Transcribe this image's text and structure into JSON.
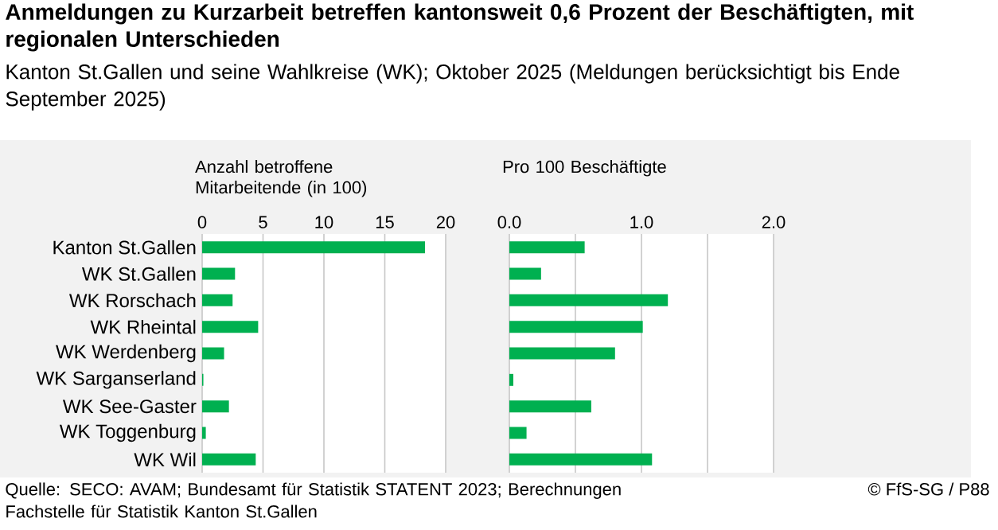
{
  "chart_data": [
    {
      "type": "bar",
      "orientation": "horizontal",
      "title": "Anmeldungen zu Kurzarbeit betreffen kantonsweit 0,6 Prozent der Beschäftigten, mit regionalen Unterschieden",
      "subtitle": "Kanton St.Gallen und seine Wahlkreise (WK); Oktober 2025 (Meldungen berücksichtigt bis Ende September 2025)",
      "xlabel": "Anzahl betroffene Mitarbeitende (in 100)",
      "categories": [
        "Kanton St.Gallen",
        "WK St.Gallen",
        "WK Rorschach",
        "WK Rheintal",
        "WK Werdenberg",
        "WK Sarganserland",
        "WK See-Gaster",
        "WK Toggenburg",
        "WK Wil"
      ],
      "values": [
        18.3,
        2.7,
        2.5,
        4.6,
        1.8,
        0.1,
        2.2,
        0.3,
        4.4
      ],
      "color": "#00b050",
      "xlim": [
        0,
        20
      ],
      "xticks": [
        0,
        5,
        10,
        15,
        20
      ],
      "grid": "x",
      "annotations": [
        "Quelle: SECO: AVAM; Bundesamt für Statistik STATENT 2023; Berechnungen Fachstelle für Statistik Kanton St.Gallen",
        "© FfS-SG / P88"
      ]
    },
    {
      "type": "bar",
      "orientation": "horizontal",
      "xlabel": "Pro 100 Beschäftigte",
      "categories": [
        null,
        null,
        null,
        null,
        null,
        null,
        null,
        null,
        null
      ],
      "values": [
        0.57,
        0.24,
        1.2,
        1.01,
        0.8,
        0.03,
        0.62,
        0.13,
        1.08
      ],
      "color": "#00b050",
      "xlim": [
        0,
        2
      ],
      "xticks": [
        {
          "value": 0,
          "label": "0.0"
        },
        {
          "value": 0.5,
          "label": null
        },
        {
          "value": 1,
          "label": "1.0"
        },
        {
          "value": 1.5,
          "label": null
        },
        {
          "value": 2,
          "label": "2.0"
        }
      ],
      "grid": "x",
      "tick_labels": "x"
    }
  ]
}
